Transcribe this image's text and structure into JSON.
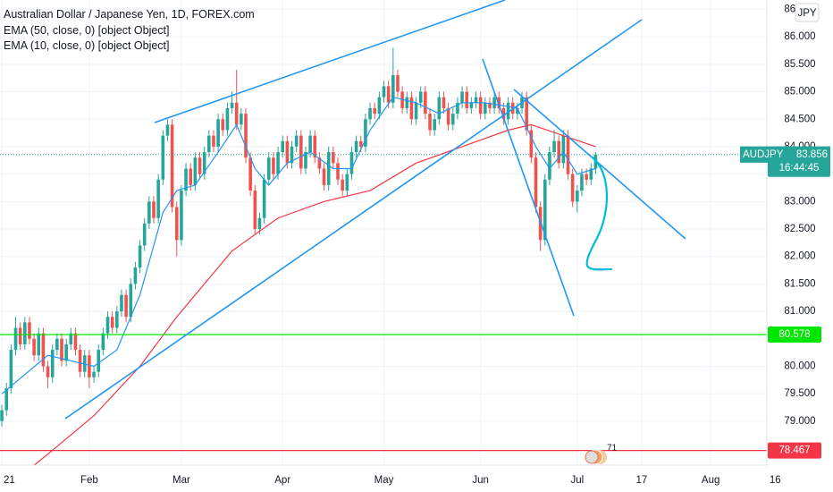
{
  "chart_data": {
    "type": "candlestick",
    "title": "Australian Dollar / Japanese Yen, 1D, FOREX.com",
    "indicators": [
      "EMA (50, close, 0) [object Object]",
      "EMA (10, close, 0) [object Object]"
    ],
    "currency": "JPY",
    "symbol": "AUDJPY",
    "last_price": {
      "value": 83.856,
      "label": "83.856"
    },
    "countdown": "16:44:45",
    "event_badge": "71",
    "up_color": "#26a69a",
    "down_color": "#ef5350",
    "ylim": [
      78.2,
      86.67
    ],
    "xlim": [
      -0.4,
      166.2
    ],
    "yticks": [
      {
        "value": 79,
        "label": "79.000"
      },
      {
        "value": 79.5,
        "label": "79.500"
      },
      {
        "value": 80,
        "label": "80.000"
      },
      {
        "value": 80.5,
        "label": "80.500"
      },
      {
        "value": 81,
        "label": "81.000"
      },
      {
        "value": 81.5,
        "label": "81.500"
      },
      {
        "value": 82,
        "label": "82.000"
      },
      {
        "value": 82.5,
        "label": "82.500"
      },
      {
        "value": 83,
        "label": "83.000"
      },
      {
        "value": 83.5,
        "label": "83.500"
      },
      {
        "value": 84,
        "label": "84.000"
      },
      {
        "value": 84.5,
        "label": "84.500"
      },
      {
        "value": 85,
        "label": "85.000"
      },
      {
        "value": 85.5,
        "label": "85.500"
      },
      {
        "value": 86,
        "label": "86.000"
      },
      {
        "value": 86.5,
        "label": "86.500"
      }
    ],
    "xticks": [
      {
        "value": 0,
        "label": "21"
      },
      {
        "value": 19,
        "label": "Feb"
      },
      {
        "value": 39,
        "label": "Mar"
      },
      {
        "value": 61,
        "label": "Apr"
      },
      {
        "value": 83,
        "label": "May"
      },
      {
        "value": 104,
        "label": "Jun"
      },
      {
        "value": 125,
        "label": "Jul"
      },
      {
        "value": 139,
        "label": "17"
      },
      {
        "value": 154,
        "label": "Aug"
      },
      {
        "value": 168,
        "label": "16"
      }
    ],
    "hlines": [
      {
        "value": 80.578,
        "label": "80.578",
        "color": "#00e600"
      },
      {
        "value": 78.467,
        "label": "78.467",
        "color": "#f23645"
      }
    ],
    "series": [
      {
        "name": "EMA (50, close, 0)",
        "color": "#f23645",
        "x": [
          7,
          10,
          20,
          30,
          38,
          45,
          50,
          60,
          70,
          80,
          90,
          100,
          110,
          115,
          122,
          129
        ],
        "values": [
          78.2,
          78.4,
          79.1,
          80.0,
          80.9,
          81.6,
          82.1,
          82.7,
          83.0,
          83.2,
          83.7,
          84.0,
          84.3,
          84.4,
          84.2,
          84.0
        ]
      },
      {
        "name": "EMA (10, close, 0)",
        "color": "#2196f3",
        "x": [
          0,
          10,
          20,
          25,
          30,
          35,
          38,
          42,
          47,
          51,
          55,
          58,
          62,
          67,
          72,
          76,
          80,
          85,
          90,
          95,
          100,
          105,
          112,
          116,
          119,
          122,
          125,
          129
        ],
        "values": [
          79.5,
          80.2,
          80.0,
          80.3,
          81.3,
          82.8,
          83.2,
          83.3,
          83.9,
          84.4,
          83.6,
          83.3,
          83.7,
          83.9,
          83.6,
          83.6,
          84.3,
          84.9,
          84.8,
          84.6,
          84.8,
          84.8,
          84.7,
          84.0,
          83.6,
          83.9,
          83.5,
          83.6
        ]
      }
    ],
    "candles": [
      [
        79.0,
        79.3,
        78.9,
        79.2
      ],
      [
        79.2,
        79.7,
        79.1,
        79.6
      ],
      [
        79.6,
        80.4,
        79.5,
        80.3
      ],
      [
        80.3,
        80.9,
        80.2,
        80.7
      ],
      [
        80.7,
        80.8,
        80.3,
        80.4
      ],
      [
        80.4,
        80.9,
        80.3,
        80.8
      ],
      [
        80.8,
        80.9,
        80.4,
        80.5
      ],
      [
        80.5,
        80.6,
        80.1,
        80.2
      ],
      [
        80.2,
        80.7,
        80.1,
        80.6
      ],
      [
        80.6,
        80.7,
        79.9,
        80.0
      ],
      [
        80.0,
        80.1,
        79.6,
        79.8
      ],
      [
        79.8,
        80.4,
        79.7,
        80.3
      ],
      [
        80.3,
        80.6,
        80.2,
        80.5
      ],
      [
        80.5,
        80.6,
        80.0,
        80.1
      ],
      [
        80.1,
        80.5,
        80.0,
        80.4
      ],
      [
        80.4,
        80.7,
        80.3,
        80.6
      ],
      [
        80.6,
        80.7,
        80.2,
        80.3
      ],
      [
        80.3,
        80.4,
        79.8,
        79.9
      ],
      [
        79.9,
        80.3,
        79.8,
        80.2
      ],
      [
        80.2,
        80.3,
        79.6,
        79.8
      ],
      [
        79.8,
        80.0,
        79.7,
        79.9
      ],
      [
        79.9,
        80.4,
        79.8,
        80.3
      ],
      [
        80.3,
        80.7,
        80.2,
        80.6
      ],
      [
        80.6,
        81.0,
        80.5,
        80.9
      ],
      [
        80.9,
        81.0,
        80.6,
        80.7
      ],
      [
        80.7,
        81.1,
        80.6,
        81.0
      ],
      [
        81.0,
        81.4,
        80.9,
        81.3
      ],
      [
        81.3,
        81.4,
        80.8,
        80.9
      ],
      [
        80.9,
        81.6,
        80.8,
        81.5
      ],
      [
        81.5,
        81.9,
        81.4,
        81.8
      ],
      [
        81.8,
        82.3,
        81.7,
        82.2
      ],
      [
        82.2,
        82.7,
        82.1,
        82.6
      ],
      [
        82.6,
        83.1,
        82.5,
        83.0
      ],
      [
        83.0,
        83.1,
        82.6,
        82.7
      ],
      [
        82.7,
        83.5,
        82.6,
        83.4
      ],
      [
        83.4,
        84.3,
        83.3,
        84.2
      ],
      [
        84.2,
        84.5,
        84.1,
        84.4
      ],
      [
        84.4,
        84.5,
        82.8,
        82.9
      ],
      [
        82.9,
        83.0,
        82.0,
        82.3
      ],
      [
        82.3,
        83.3,
        82.2,
        83.2
      ],
      [
        83.2,
        83.7,
        83.1,
        83.6
      ],
      [
        83.6,
        83.7,
        83.2,
        83.3
      ],
      [
        83.3,
        83.9,
        83.2,
        83.8
      ],
      [
        83.8,
        83.9,
        83.4,
        83.5
      ],
      [
        83.5,
        84.0,
        83.4,
        83.9
      ],
      [
        83.9,
        84.3,
        83.8,
        84.2
      ],
      [
        84.2,
        84.3,
        83.9,
        84.0
      ],
      [
        84.0,
        84.6,
        83.9,
        84.5
      ],
      [
        84.5,
        84.6,
        84.2,
        84.3
      ],
      [
        84.3,
        84.8,
        84.2,
        84.7
      ],
      [
        84.7,
        85.0,
        84.6,
        84.8
      ],
      [
        84.8,
        85.4,
        84.3,
        84.4
      ],
      [
        84.4,
        84.7,
        84.3,
        84.6
      ],
      [
        84.6,
        84.7,
        83.7,
        83.8
      ],
      [
        83.8,
        83.9,
        83.1,
        83.2
      ],
      [
        83.2,
        83.3,
        82.4,
        82.5
      ],
      [
        82.5,
        82.8,
        82.4,
        82.7
      ],
      [
        82.7,
        83.5,
        82.6,
        83.4
      ],
      [
        83.4,
        83.9,
        83.3,
        83.8
      ],
      [
        83.8,
        83.9,
        83.4,
        83.5
      ],
      [
        83.5,
        84.0,
        83.4,
        83.9
      ],
      [
        83.9,
        84.2,
        83.8,
        84.1
      ],
      [
        84.1,
        84.2,
        83.6,
        83.7
      ],
      [
        83.7,
        84.1,
        83.6,
        84.0
      ],
      [
        84.0,
        84.3,
        83.9,
        84.2
      ],
      [
        84.2,
        84.3,
        83.5,
        83.6
      ],
      [
        83.6,
        84.0,
        83.5,
        83.9
      ],
      [
        83.9,
        84.3,
        83.8,
        84.2
      ],
      [
        84.2,
        84.3,
        83.7,
        83.8
      ],
      [
        83.8,
        83.9,
        83.5,
        83.6
      ],
      [
        83.6,
        83.7,
        83.2,
        83.3
      ],
      [
        83.3,
        84.0,
        83.2,
        83.9
      ],
      [
        83.9,
        84.0,
        83.6,
        83.7
      ],
      [
        83.7,
        83.8,
        83.3,
        83.4
      ],
      [
        83.4,
        83.5,
        83.1,
        83.2
      ],
      [
        83.2,
        83.6,
        83.1,
        83.5
      ],
      [
        83.5,
        84.0,
        83.4,
        83.9
      ],
      [
        83.9,
        84.2,
        83.8,
        84.1
      ],
      [
        84.1,
        84.2,
        83.9,
        84.0
      ],
      [
        84.0,
        84.6,
        83.9,
        84.5
      ],
      [
        84.5,
        84.8,
        84.4,
        84.7
      ],
      [
        84.7,
        84.8,
        84.5,
        84.6
      ],
      [
        84.6,
        85.0,
        84.5,
        84.9
      ],
      [
        84.9,
        85.2,
        84.8,
        85.1
      ],
      [
        85.1,
        85.2,
        84.7,
        84.8
      ],
      [
        84.8,
        85.8,
        84.7,
        85.3
      ],
      [
        85.3,
        85.4,
        84.9,
        85.0
      ],
      [
        85.0,
        85.1,
        84.6,
        84.7
      ],
      [
        84.7,
        85.0,
        84.6,
        84.9
      ],
      [
        84.9,
        85.0,
        84.4,
        84.5
      ],
      [
        84.5,
        84.9,
        84.4,
        84.8
      ],
      [
        84.8,
        85.1,
        84.7,
        85.0
      ],
      [
        85.0,
        85.1,
        84.5,
        84.6
      ],
      [
        84.6,
        84.7,
        84.2,
        84.3
      ],
      [
        84.3,
        84.6,
        84.2,
        84.5
      ],
      [
        84.5,
        85.0,
        84.4,
        84.9
      ],
      [
        84.9,
        85.0,
        84.6,
        84.7
      ],
      [
        84.7,
        84.8,
        84.3,
        84.4
      ],
      [
        84.4,
        84.7,
        84.3,
        84.6
      ],
      [
        84.6,
        84.9,
        84.5,
        84.8
      ],
      [
        84.8,
        85.1,
        84.7,
        85.0
      ],
      [
        85.0,
        85.1,
        84.6,
        84.7
      ],
      [
        84.7,
        84.9,
        84.6,
        84.8
      ],
      [
        84.8,
        85.0,
        84.7,
        84.9
      ],
      [
        84.9,
        85.0,
        84.5,
        84.6
      ],
      [
        84.6,
        84.9,
        84.5,
        84.8
      ],
      [
        84.8,
        84.9,
        84.6,
        84.7
      ],
      [
        84.7,
        85.0,
        84.6,
        84.9
      ],
      [
        84.9,
        85.0,
        84.6,
        84.7
      ],
      [
        84.7,
        84.8,
        84.4,
        84.5
      ],
      [
        84.5,
        84.9,
        84.4,
        84.8
      ],
      [
        84.8,
        84.9,
        84.5,
        84.6
      ],
      [
        84.6,
        84.8,
        84.5,
        84.7
      ],
      [
        84.7,
        85.0,
        84.6,
        84.9
      ],
      [
        84.9,
        85.0,
        84.2,
        84.3
      ],
      [
        84.3,
        84.4,
        83.7,
        83.8
      ],
      [
        83.8,
        83.9,
        82.8,
        82.9
      ],
      [
        82.9,
        83.0,
        82.1,
        82.3
      ],
      [
        82.3,
        83.5,
        82.2,
        83.4
      ],
      [
        83.4,
        84.0,
        83.3,
        83.9
      ],
      [
        83.9,
        84.3,
        83.8,
        84.1
      ],
      [
        84.1,
        84.2,
        83.6,
        83.7
      ],
      [
        83.7,
        84.3,
        83.6,
        84.2
      ],
      [
        84.2,
        84.3,
        83.4,
        83.5
      ],
      [
        83.5,
        83.6,
        82.9,
        83.0
      ],
      [
        83.0,
        83.3,
        82.8,
        83.2
      ],
      [
        83.2,
        83.6,
        83.1,
        83.5
      ],
      [
        83.5,
        83.6,
        83.3,
        83.4
      ],
      [
        83.4,
        83.7,
        83.3,
        83.6
      ],
      [
        83.6,
        83.9,
        83.5,
        83.856
      ]
    ]
  }
}
